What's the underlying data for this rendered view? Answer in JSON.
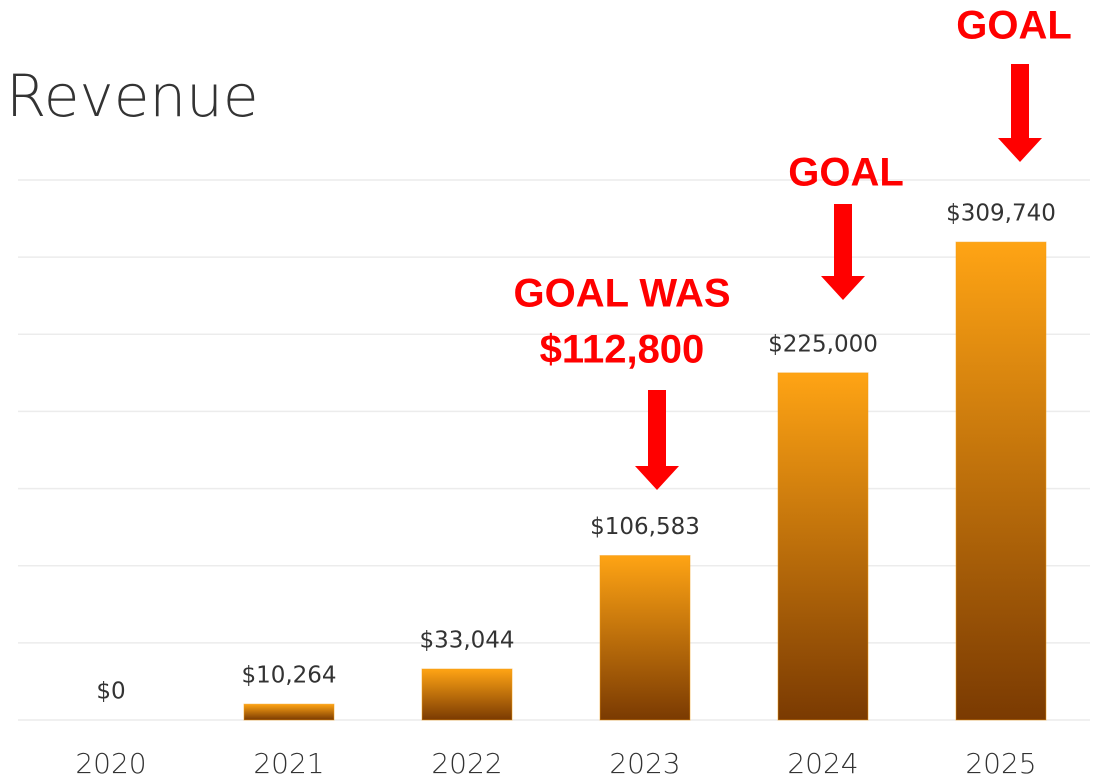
{
  "chart_data": {
    "type": "bar",
    "title": "Revenue",
    "categories": [
      "2020",
      "2021",
      "2022",
      "2023",
      "2024",
      "2025"
    ],
    "values": [
      0,
      10264,
      33044,
      106583,
      225000,
      309740
    ],
    "value_labels": [
      "$0",
      "$10,264",
      "$33,044",
      "$106,583",
      "$225,000",
      "$309,740"
    ],
    "color": "#f39a10",
    "ylim": [
      0,
      350000
    ],
    "yticks": [
      0,
      50000,
      100000,
      150000,
      200000,
      250000,
      300000,
      350000
    ],
    "grid": true,
    "annotations": [
      {
        "lines": [
          "GOAL WAS",
          "$112,800"
        ],
        "color": "#ff0000"
      },
      {
        "lines": [
          "GOAL"
        ],
        "color": "#ff0000"
      },
      {
        "lines": [
          "GOAL"
        ],
        "color": "#ff0000"
      }
    ]
  }
}
